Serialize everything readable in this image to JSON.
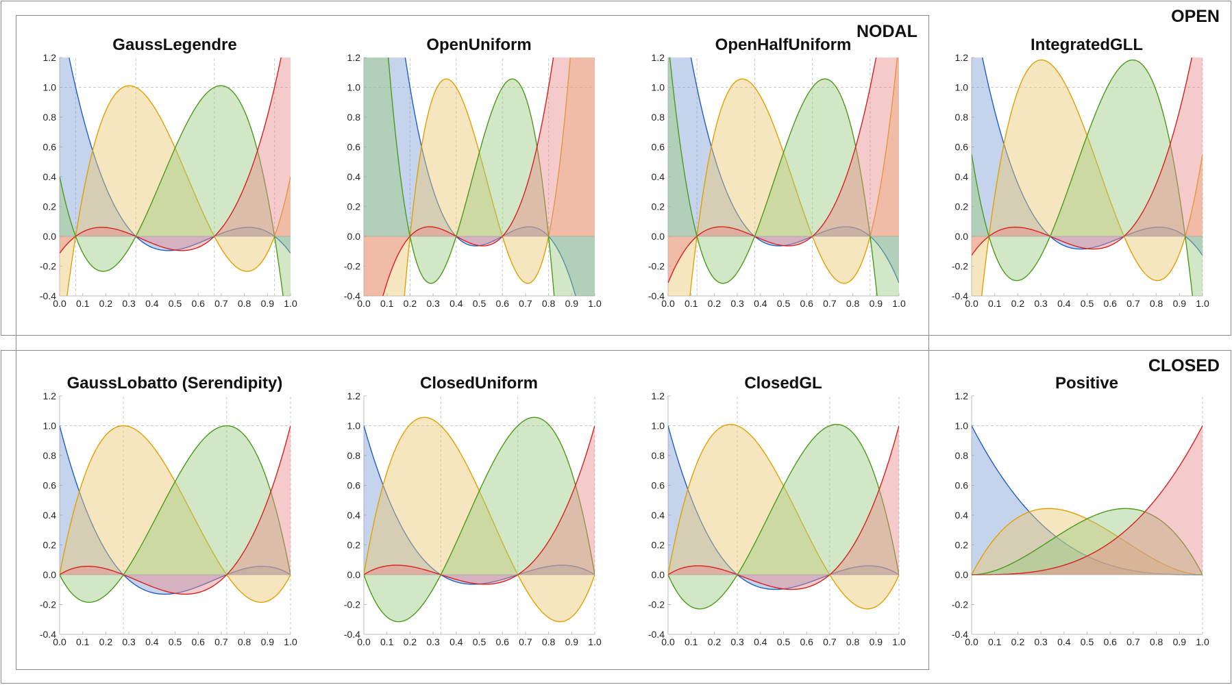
{
  "figure": {
    "group_labels": {
      "open": "OPEN",
      "closed": "CLOSED",
      "nodal": "NODAL"
    },
    "series_colors": {
      "phi0": {
        "line": "#1f5fbf",
        "fill": "#7fa0d4"
      },
      "phi1": {
        "line": "#e0a000",
        "fill": "#ecc870"
      },
      "phi2": {
        "line": "#4a9a1a",
        "fill": "#9cc97e"
      },
      "phi3": {
        "line": "#d62020",
        "fill": "#e88a8a"
      }
    },
    "grid_color": "#c8c8c8"
  },
  "chart_data": [
    {
      "id": "gauss-legendre",
      "type": "area",
      "title": "GaussLegendre",
      "basis": "lagrange",
      "nodes": [
        0.0694,
        0.33,
        0.67,
        0.9306
      ],
      "vgrid": [
        0.0694,
        0.33,
        0.67,
        0.9306
      ],
      "xlim": [
        0,
        1
      ],
      "ylim": [
        -0.4,
        1.2
      ],
      "xticks": [
        "0.0",
        "0.1",
        "0.2",
        "0.3",
        "0.4",
        "0.5",
        "0.6",
        "0.7",
        "0.8",
        "0.9",
        "1.0"
      ],
      "yticks": [
        "-0.4",
        "-0.2",
        "0.0",
        "0.2",
        "0.4",
        "0.6",
        "0.8",
        "1.0",
        "1.2"
      ],
      "hgrid": [
        1.0
      ],
      "series": [
        "phi0",
        "phi1",
        "phi2",
        "phi3"
      ]
    },
    {
      "id": "open-uniform",
      "type": "area",
      "title": "OpenUniform",
      "basis": "lagrange",
      "nodes": [
        0.2,
        0.4,
        0.6,
        0.8
      ],
      "vgrid": [
        0.2,
        0.4,
        0.6,
        0.8
      ],
      "xlim": [
        0,
        1
      ],
      "ylim": [
        -0.4,
        1.2
      ],
      "xticks": [
        "0.0",
        "0.1",
        "0.2",
        "0.3",
        "0.4",
        "0.5",
        "0.6",
        "0.7",
        "0.8",
        "0.9",
        "1.0"
      ],
      "yticks": [
        "-0.4",
        "-0.2",
        "0.0",
        "0.2",
        "0.4",
        "0.6",
        "0.8",
        "1.0",
        "1.2"
      ],
      "hgrid": [
        1.0
      ],
      "series": [
        "phi0",
        "phi1",
        "phi2",
        "phi3"
      ]
    },
    {
      "id": "open-half-uniform",
      "type": "area",
      "title": "OpenHalfUniform",
      "basis": "lagrange",
      "nodes": [
        0.125,
        0.375,
        0.625,
        0.875
      ],
      "vgrid": [
        0.125,
        0.375,
        0.625,
        0.875
      ],
      "xlim": [
        0,
        1
      ],
      "ylim": [
        -0.4,
        1.2
      ],
      "xticks": [
        "0.0",
        "0.1",
        "0.2",
        "0.3",
        "0.4",
        "0.5",
        "0.6",
        "0.7",
        "0.8",
        "0.9",
        "1.0"
      ],
      "yticks": [
        "-0.4",
        "-0.2",
        "0.0",
        "0.2",
        "0.4",
        "0.6",
        "0.8",
        "1.0",
        "1.2"
      ],
      "hgrid": [
        1.0
      ],
      "series": [
        "phi0",
        "phi1",
        "phi2",
        "phi3"
      ]
    },
    {
      "id": "integrated-gll",
      "type": "area",
      "title": "IntegratedGLL",
      "basis": "lagrange",
      "nodes": [
        0.075,
        0.34,
        0.66,
        0.925
      ],
      "vgrid": [
        1.0
      ],
      "xlim": [
        0,
        1
      ],
      "ylim": [
        -0.4,
        1.2
      ],
      "xticks": [
        "0.0",
        "0.1",
        "0.2",
        "0.3",
        "0.4",
        "0.5",
        "0.6",
        "0.7",
        "0.8",
        "0.9",
        "1.0"
      ],
      "yticks": [
        "-0.4",
        "-0.2",
        "0.0",
        "0.2",
        "0.4",
        "0.6",
        "0.8",
        "1.0",
        "1.2"
      ],
      "hgrid": [
        1.0
      ],
      "peak_scale": 1.16,
      "series": [
        "phi0",
        "phi1",
        "phi2",
        "phi3"
      ]
    },
    {
      "id": "gauss-lobatto",
      "type": "area",
      "title": "GaussLobatto (Serendipity)",
      "basis": "lagrange",
      "nodes": [
        0.0,
        0.2764,
        0.7236,
        1.0
      ],
      "vgrid": [
        0.2764,
        0.7236,
        1.0
      ],
      "xlim": [
        0,
        1
      ],
      "ylim": [
        -0.4,
        1.2
      ],
      "xticks": [
        "0.0",
        "0.1",
        "0.2",
        "0.3",
        "0.4",
        "0.5",
        "0.6",
        "0.7",
        "0.8",
        "0.9",
        "1.0"
      ],
      "yticks": [
        "-0.4",
        "-0.2",
        "0.0",
        "0.2",
        "0.4",
        "0.6",
        "0.8",
        "1.0",
        "1.2"
      ],
      "hgrid": [
        1.0
      ],
      "series": [
        "phi0",
        "phi1",
        "phi2",
        "phi3"
      ]
    },
    {
      "id": "closed-uniform",
      "type": "area",
      "title": "ClosedUniform",
      "basis": "lagrange",
      "nodes": [
        0.0,
        0.3333,
        0.6667,
        1.0
      ],
      "vgrid": [
        0.3333,
        0.6667,
        1.0
      ],
      "xlim": [
        0,
        1
      ],
      "ylim": [
        -0.4,
        1.2
      ],
      "xticks": [
        "0.0",
        "0.1",
        "0.2",
        "0.3",
        "0.4",
        "0.5",
        "0.6",
        "0.7",
        "0.8",
        "0.9",
        "1.0"
      ],
      "yticks": [
        "-0.4",
        "-0.2",
        "0.0",
        "0.2",
        "0.4",
        "0.6",
        "0.8",
        "1.0",
        "1.2"
      ],
      "hgrid": [
        1.0
      ],
      "series": [
        "phi0",
        "phi1",
        "phi2",
        "phi3"
      ]
    },
    {
      "id": "closed-gl",
      "type": "area",
      "title": "ClosedGL",
      "basis": "lagrange",
      "nodes": [
        0.0,
        0.3,
        0.7,
        1.0
      ],
      "vgrid": [
        0.3,
        0.7,
        1.0
      ],
      "xlim": [
        0,
        1
      ],
      "ylim": [
        -0.4,
        1.2
      ],
      "xticks": [
        "0.0",
        "0.1",
        "0.2",
        "0.3",
        "0.4",
        "0.5",
        "0.6",
        "0.7",
        "0.8",
        "0.9",
        "1.0"
      ],
      "yticks": [
        "-0.4",
        "-0.2",
        "0.0",
        "0.2",
        "0.4",
        "0.6",
        "0.8",
        "1.0",
        "1.2"
      ],
      "hgrid": [
        1.0
      ],
      "series": [
        "phi0",
        "phi1",
        "phi2",
        "phi3"
      ]
    },
    {
      "id": "positive",
      "type": "area",
      "title": "Positive",
      "basis": "bernstein",
      "degree": 3,
      "vgrid": [
        1.0
      ],
      "xlim": [
        0,
        1
      ],
      "ylim": [
        -0.4,
        1.2
      ],
      "xticks": [
        "0.0",
        "0.1",
        "0.2",
        "0.3",
        "0.4",
        "0.5",
        "0.6",
        "0.7",
        "0.8",
        "0.9",
        "1.0"
      ],
      "yticks": [
        "-0.4",
        "-0.2",
        "0.0",
        "0.2",
        "0.4",
        "0.6",
        "0.8",
        "1.0",
        "1.2"
      ],
      "hgrid": [
        1.0
      ],
      "series": [
        "phi0",
        "phi1",
        "phi2",
        "phi3"
      ]
    }
  ]
}
